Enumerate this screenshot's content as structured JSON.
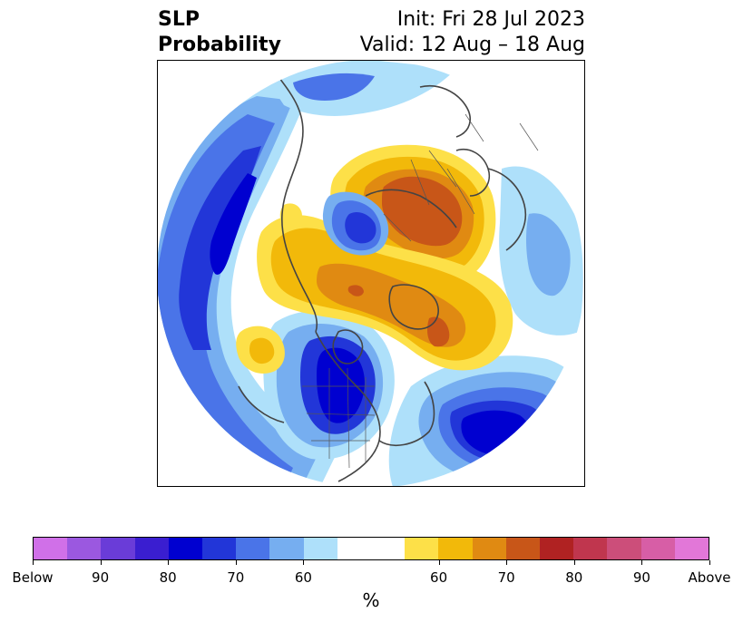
{
  "header": {
    "title_line1": "SLP",
    "title_line2": "Probability",
    "init": "Init: Fri 28 Jul 2023",
    "valid": "Valid: 12 Aug – 18 Aug"
  },
  "colorbar": {
    "colors": [
      "#d070e8",
      "#9b58e0",
      "#6a3cd8",
      "#3a1ed0",
      "#0000d0",
      "#2236d8",
      "#4a74e8",
      "#76aef0",
      "#aee0fa",
      "#ffffff",
      "#ffffff",
      "#fde048",
      "#f2b90a",
      "#e08a12",
      "#c85618",
      "#b02222",
      "#c0364e",
      "#cc4e7a",
      "#d75ea6",
      "#e277d8"
    ],
    "labels": [
      "Below",
      "90",
      "80",
      "70",
      "60",
      "60",
      "70",
      "80",
      "90",
      "Above"
    ],
    "unit": "%"
  },
  "map": {
    "colors": {
      "blue_light": "#aee0fa",
      "blue_mid": "#76aef0",
      "blue": "#4a74e8",
      "blue_strong": "#2236d8",
      "blue_deep": "#0000d0",
      "yellow": "#fde048",
      "orange_light": "#f2b90a",
      "orange": "#e08a12",
      "orange_dark": "#c85618",
      "coast": "#444444"
    }
  }
}
